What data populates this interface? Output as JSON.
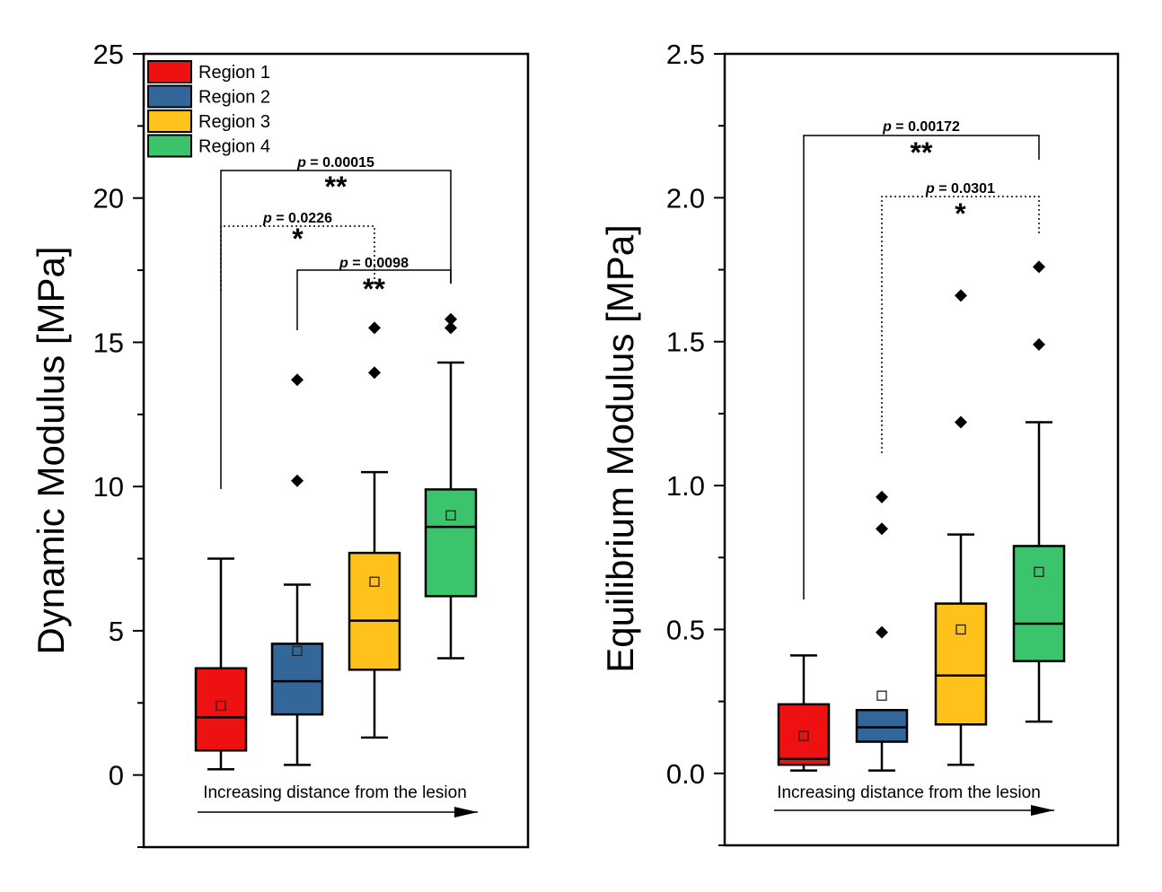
{
  "colors": {
    "region_1": "#ee1111",
    "region_2": "#336699",
    "region_3": "#ffc21b",
    "region_4": "#3cc46c"
  },
  "legend": [
    {
      "label": "Region 1"
    },
    {
      "label": "Region 2"
    },
    {
      "label": "Region 3"
    },
    {
      "label": "Region 4"
    }
  ],
  "chart_data": [
    {
      "type": "box",
      "title": "",
      "ylabel": "Dynamic Modulus [MPa]",
      "xlabel": "Increasing distance from the lesion",
      "ylim": [
        -2.5,
        25
      ],
      "yticks": [
        0,
        5,
        10,
        15,
        20,
        25
      ],
      "ytick_labels": [
        "0",
        "5",
        "10",
        "15",
        "20",
        "25"
      ],
      "categories": [
        "Region 1",
        "Region 2",
        "Region 3",
        "Region 4"
      ],
      "series": [
        {
          "name": "Region 1",
          "whisker_low": 0.2,
          "q1": 0.85,
          "median": 2.0,
          "q3": 3.7,
          "whisker_high": 7.5,
          "mean": 2.4,
          "outliers": []
        },
        {
          "name": "Region 2",
          "whisker_low": 0.35,
          "q1": 2.1,
          "median": 3.25,
          "q3": 4.55,
          "whisker_high": 6.6,
          "mean": 4.3,
          "outliers": [
            10.2,
            13.7
          ]
        },
        {
          "name": "Region 3",
          "whisker_low": 1.3,
          "q1": 3.65,
          "median": 5.35,
          "q3": 7.7,
          "whisker_high": 10.5,
          "mean": 6.7,
          "outliers": [
            13.95,
            15.5
          ]
        },
        {
          "name": "Region 4",
          "whisker_low": 4.05,
          "q1": 6.2,
          "median": 8.6,
          "q3": 9.9,
          "whisker_high": 14.3,
          "mean": 9.0,
          "outliers": [
            15.5,
            15.8
          ]
        }
      ],
      "annotations": [
        {
          "from": "Region 1",
          "to": "Region 4",
          "p_label": "p",
          "p_value": " = 0.00015",
          "stars": "**",
          "dotted": false
        },
        {
          "from": "Region 1",
          "to": "Region 3",
          "p_label": "p",
          "p_value": " = 0.0226",
          "stars": "*",
          "dotted": true
        },
        {
          "from": "Region 2",
          "to": "Region 4",
          "p_label": "p",
          "p_value": " = 0.0098",
          "stars": "**",
          "dotted": false
        }
      ]
    },
    {
      "type": "box",
      "title": "",
      "ylabel": "Equilibrium Modulus [MPa]",
      "xlabel": "Increasing distance from the lesion",
      "ylim": [
        -0.25,
        2.5
      ],
      "yticks": [
        0,
        0.5,
        1.0,
        1.5,
        2.0,
        2.5
      ],
      "ytick_labels": [
        "0.0",
        "0.5",
        "1.0",
        "1.5",
        "2.0",
        "2.5"
      ],
      "categories": [
        "Region 1",
        "Region 2",
        "Region 3",
        "Region 4"
      ],
      "series": [
        {
          "name": "Region 1",
          "whisker_low": 0.01,
          "q1": 0.03,
          "median": 0.05,
          "q3": 0.24,
          "whisker_high": 0.41,
          "mean": 0.13,
          "outliers": []
        },
        {
          "name": "Region 2",
          "whisker_low": 0.01,
          "q1": 0.11,
          "median": 0.16,
          "q3": 0.22,
          "whisker_high": 0.22,
          "mean": 0.27,
          "outliers": [
            0.49,
            0.85,
            0.96
          ]
        },
        {
          "name": "Region 3",
          "whisker_low": 0.03,
          "q1": 0.17,
          "median": 0.34,
          "q3": 0.59,
          "whisker_high": 0.83,
          "mean": 0.5,
          "outliers": [
            1.22,
            1.66
          ]
        },
        {
          "name": "Region 4",
          "whisker_low": 0.18,
          "q1": 0.39,
          "median": 0.52,
          "q3": 0.79,
          "whisker_high": 1.22,
          "mean": 0.7,
          "outliers": [
            1.49,
            1.76
          ]
        }
      ],
      "annotations": [
        {
          "from": "Region 1",
          "to": "Region 4",
          "p_label": "p",
          "p_value": " = 0.00172",
          "stars": "**",
          "dotted": false
        },
        {
          "from": "Region 2",
          "to": "Region 4",
          "p_label": "p",
          "p_value": " = 0.0301",
          "stars": "*",
          "dotted": true
        }
      ]
    }
  ]
}
